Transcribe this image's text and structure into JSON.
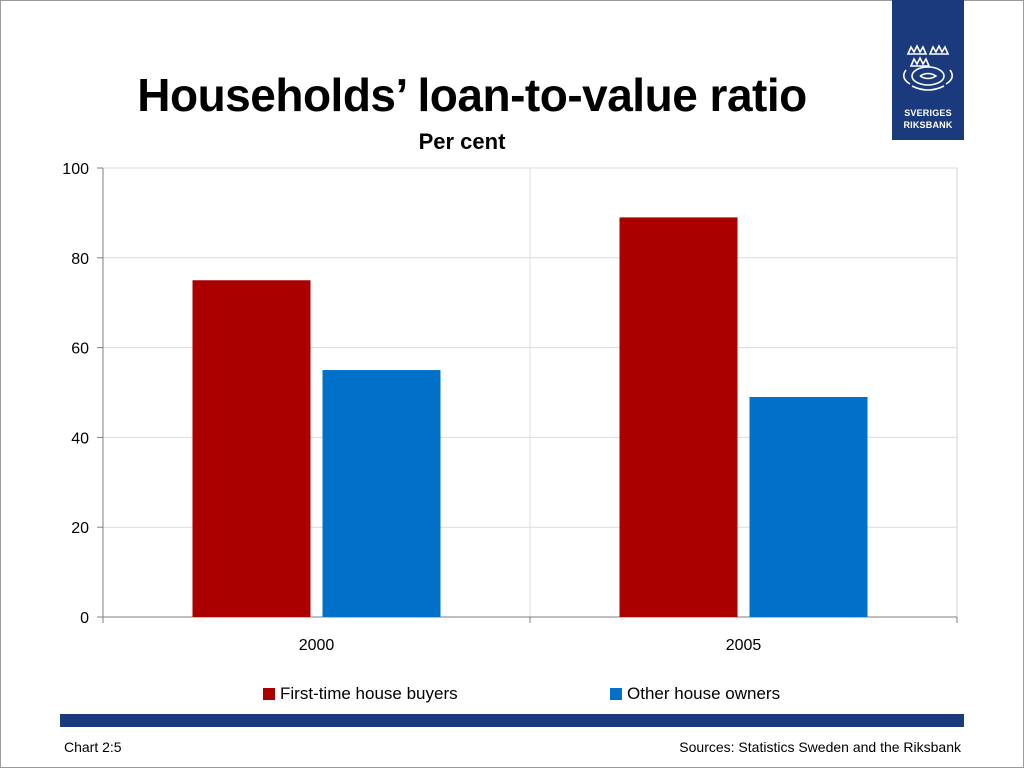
{
  "slide": {
    "title": "Households’ loan-to-value ratio",
    "subtitle": "Per cent",
    "chart_number": "Chart 2:5",
    "sources": "Sources: Statistics Sweden and the Riksbank"
  },
  "logo": {
    "line1": "SVERIGES",
    "line2": "RIKSBANK",
    "color": "#1b3a7d"
  },
  "chart_data": {
    "type": "bar",
    "categories": [
      "2000",
      "2005"
    ],
    "series": [
      {
        "name": "First-time house buyers",
        "values": [
          75,
          89
        ],
        "color": "#aa0000"
      },
      {
        "name": "Other house owners",
        "values": [
          55,
          49
        ],
        "color": "#0070c8"
      }
    ],
    "ylim": [
      0,
      100
    ],
    "yticks": [
      0,
      20,
      40,
      60,
      80,
      100
    ],
    "grid": true,
    "legend": "bottom"
  },
  "colors": {
    "stripe": "#1b3a7d"
  }
}
